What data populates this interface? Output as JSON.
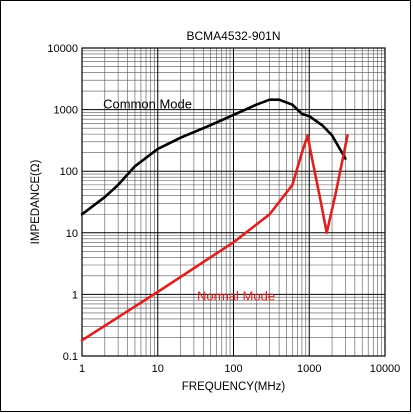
{
  "chart_data": {
    "type": "line",
    "title": "BCMA4532-901N",
    "xlabel": "FREQUENCY(MHz)",
    "ylabel": "IMPEDANCE(Ω)",
    "xscale": "log",
    "yscale": "log",
    "xlim": [
      1,
      10000
    ],
    "ylim": [
      0.1,
      10000
    ],
    "grid": true,
    "x_ticks": [
      {
        "value": 1,
        "label": "1"
      },
      {
        "value": 10,
        "label": "10"
      },
      {
        "value": 100,
        "label": "100"
      },
      {
        "value": 1000,
        "label": "1000"
      },
      {
        "value": 10000,
        "label": "10000"
      }
    ],
    "y_ticks": [
      {
        "value": 0.1,
        "label": "0.1"
      },
      {
        "value": 1,
        "label": "1"
      },
      {
        "value": 10,
        "label": "10"
      },
      {
        "value": 100,
        "label": "100"
      },
      {
        "value": 1000,
        "label": "1000"
      },
      {
        "value": 10000,
        "label": "10000"
      }
    ],
    "series": [
      {
        "name": "Common Mode",
        "color": "#000000",
        "label_anchor": {
          "x": 1.9,
          "y": 1050
        },
        "points": [
          {
            "x": 1,
            "y": 20
          },
          {
            "x": 2,
            "y": 38
          },
          {
            "x": 3,
            "y": 60
          },
          {
            "x": 5,
            "y": 120
          },
          {
            "x": 10,
            "y": 230
          },
          {
            "x": 20,
            "y": 350
          },
          {
            "x": 50,
            "y": 560
          },
          {
            "x": 100,
            "y": 820
          },
          {
            "x": 200,
            "y": 1200
          },
          {
            "x": 300,
            "y": 1450
          },
          {
            "x": 400,
            "y": 1450
          },
          {
            "x": 600,
            "y": 1200
          },
          {
            "x": 800,
            "y": 850
          },
          {
            "x": 1000,
            "y": 780
          },
          {
            "x": 1500,
            "y": 550
          },
          {
            "x": 2000,
            "y": 380
          },
          {
            "x": 3000,
            "y": 160
          }
        ]
      },
      {
        "name": "Normal Mode",
        "color": "#e02020",
        "label_anchor": {
          "x": 33,
          "y": 0.8
        },
        "points": [
          {
            "x": 1,
            "y": 0.18
          },
          {
            "x": 10,
            "y": 1.1
          },
          {
            "x": 100,
            "y": 7
          },
          {
            "x": 300,
            "y": 20
          },
          {
            "x": 600,
            "y": 60
          },
          {
            "x": 800,
            "y": 200
          },
          {
            "x": 950,
            "y": 380
          },
          {
            "x": 1100,
            "y": 150
          },
          {
            "x": 1400,
            "y": 35
          },
          {
            "x": 1700,
            "y": 10
          },
          {
            "x": 2200,
            "y": 40
          },
          {
            "x": 3200,
            "y": 380
          }
        ]
      }
    ]
  }
}
